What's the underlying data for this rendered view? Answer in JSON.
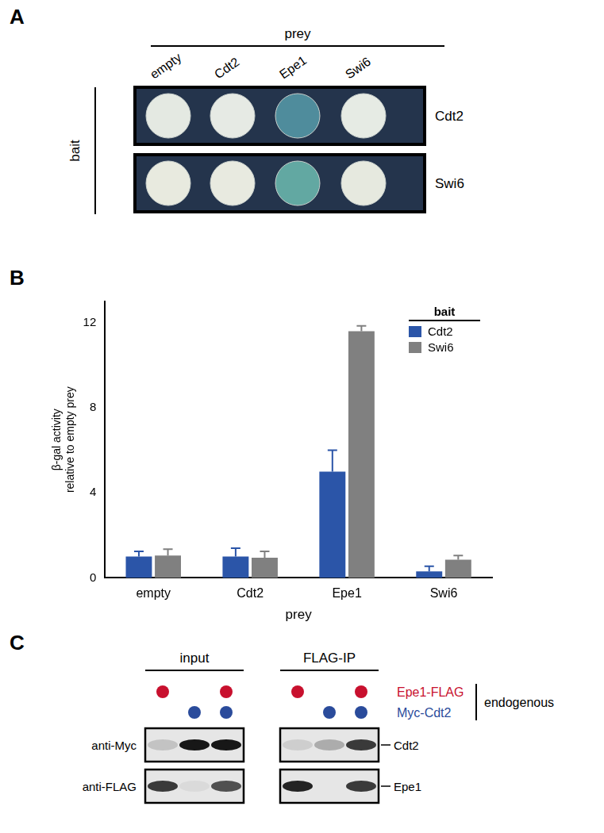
{
  "chart_data": {
    "label": "B",
    "type": "bar",
    "categories": [
      "empty",
      "Cdt2",
      "Epe1",
      "Swi6"
    ],
    "x_label": "prey",
    "y_label": [
      "β-gal activity",
      "relative to empty prey"
    ],
    "series": [
      {
        "name": "Cdt2",
        "color": "#2b55a8",
        "values": [
          1.0,
          1.0,
          5.0,
          0.3
        ],
        "errors": [
          0.25,
          0.4,
          1.0,
          0.25
        ]
      },
      {
        "name": "Swi6",
        "color": "#808080",
        "values": [
          1.05,
          0.95,
          11.6,
          0.85
        ],
        "errors": [
          0.3,
          0.3,
          0.25,
          0.2
        ]
      }
    ],
    "legend_title": "bait",
    "legend": "upper right",
    "ylim": [
      0,
      13
    ],
    "yticks": [
      0,
      4,
      8,
      12
    ],
    "grid": false
  },
  "panel_a": {
    "label": "A",
    "column_title": "prey",
    "columns": [
      "empty",
      "Cdt2",
      "Epe1",
      "Swi6"
    ],
    "row_title": "bait",
    "rows": [
      {
        "name": "Cdt2",
        "colony_colors": [
          "#e4e9e2",
          "#e6eae4",
          "#4f8c9c",
          "#e6ebe4"
        ]
      },
      {
        "name": "Swi6",
        "colony_colors": [
          "#e8eadf",
          "#e8eae0",
          "#62a8a2",
          "#e6e9df"
        ]
      }
    ]
  },
  "panel_c": {
    "label": "C",
    "groups": [
      "input",
      "FLAG-IP"
    ],
    "lanes": [
      {
        "name": "Epe1-FLAG",
        "color": "#c8102e",
        "present": [
          true,
          false,
          true
        ]
      },
      {
        "name": "Myc-Cdt2",
        "color": "#2a4b9b",
        "present": [
          false,
          true,
          true
        ]
      }
    ],
    "bracket_label": "endogenous",
    "blots": [
      {
        "antibody": "anti-Myc",
        "protein": "Cdt2",
        "band_intensity": [
          [
            0.15,
            0.9,
            0.9
          ],
          [
            0.1,
            0.25,
            0.75
          ]
        ]
      },
      {
        "antibody": "anti-FLAG",
        "protein": "Epe1",
        "band_intensity": [
          [
            0.75,
            0.05,
            0.65
          ],
          [
            0.85,
            0.0,
            0.75
          ]
        ]
      }
    ]
  }
}
